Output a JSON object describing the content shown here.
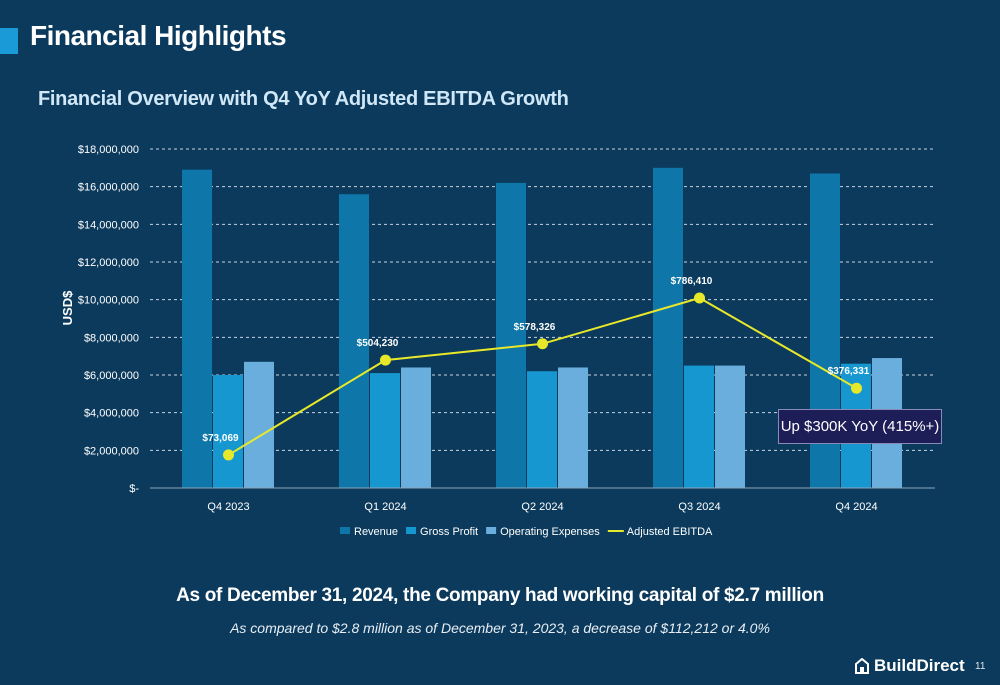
{
  "slide": {
    "title": "Financial Highlights",
    "accent_color": "#1a9ad6",
    "background_color": "#0b3a5c",
    "page_number": "11",
    "brand": "BuildDirect",
    "brand_icon": "house-icon"
  },
  "summary": {
    "headline": "As of December 31, 2024, the Company had working capital of $2.7 million",
    "detail": "As compared to $2.8 million as of December 31, 2023, a decrease of $112,212 or 4.0%"
  },
  "callout": {
    "text": "Up $300K YoY (415%+)"
  },
  "chart_data": {
    "type": "bar",
    "title": "Financial Overview with Q4 YoY Adjusted EBITDA Growth",
    "xlabel": "",
    "ylabel": "USD$",
    "ylim": [
      0,
      18000000
    ],
    "y_ticks": [
      0,
      2000000,
      4000000,
      6000000,
      8000000,
      10000000,
      12000000,
      14000000,
      16000000,
      18000000
    ],
    "y_tick_labels": [
      "$-",
      "$2,000,000",
      "$4,000,000",
      "$6,000,000",
      "$8,000,000",
      "$10,000,000",
      "$12,000,000",
      "$14,000,000",
      "$16,000,000",
      "$18,000,000"
    ],
    "grid": true,
    "legend_position": "bottom",
    "categories": [
      "Q4 2023",
      "Q1 2024",
      "Q2 2024",
      "Q3 2024",
      "Q4 2024"
    ],
    "series": [
      {
        "name": "Revenue",
        "type": "bar",
        "color": "#0e76a8",
        "values": [
          16900000,
          15600000,
          16200000,
          17000000,
          16700000
        ]
      },
      {
        "name": "Gross Profit",
        "type": "bar",
        "color": "#1797cf",
        "values": [
          6000000,
          6100000,
          6200000,
          6500000,
          6600000
        ]
      },
      {
        "name": "Operating Expenses",
        "type": "bar",
        "color": "#6aaedd",
        "values": [
          6700000,
          6400000,
          6400000,
          6500000,
          6900000
        ]
      },
      {
        "name": "Adjusted EBITDA",
        "type": "line",
        "color": "#e8e82a",
        "values": [
          73069,
          504230,
          578326,
          786410,
          376331
        ],
        "data_labels": [
          "$73,069",
          "$504,230",
          "$578,326",
          "$786,410",
          "$376,331"
        ]
      }
    ]
  }
}
